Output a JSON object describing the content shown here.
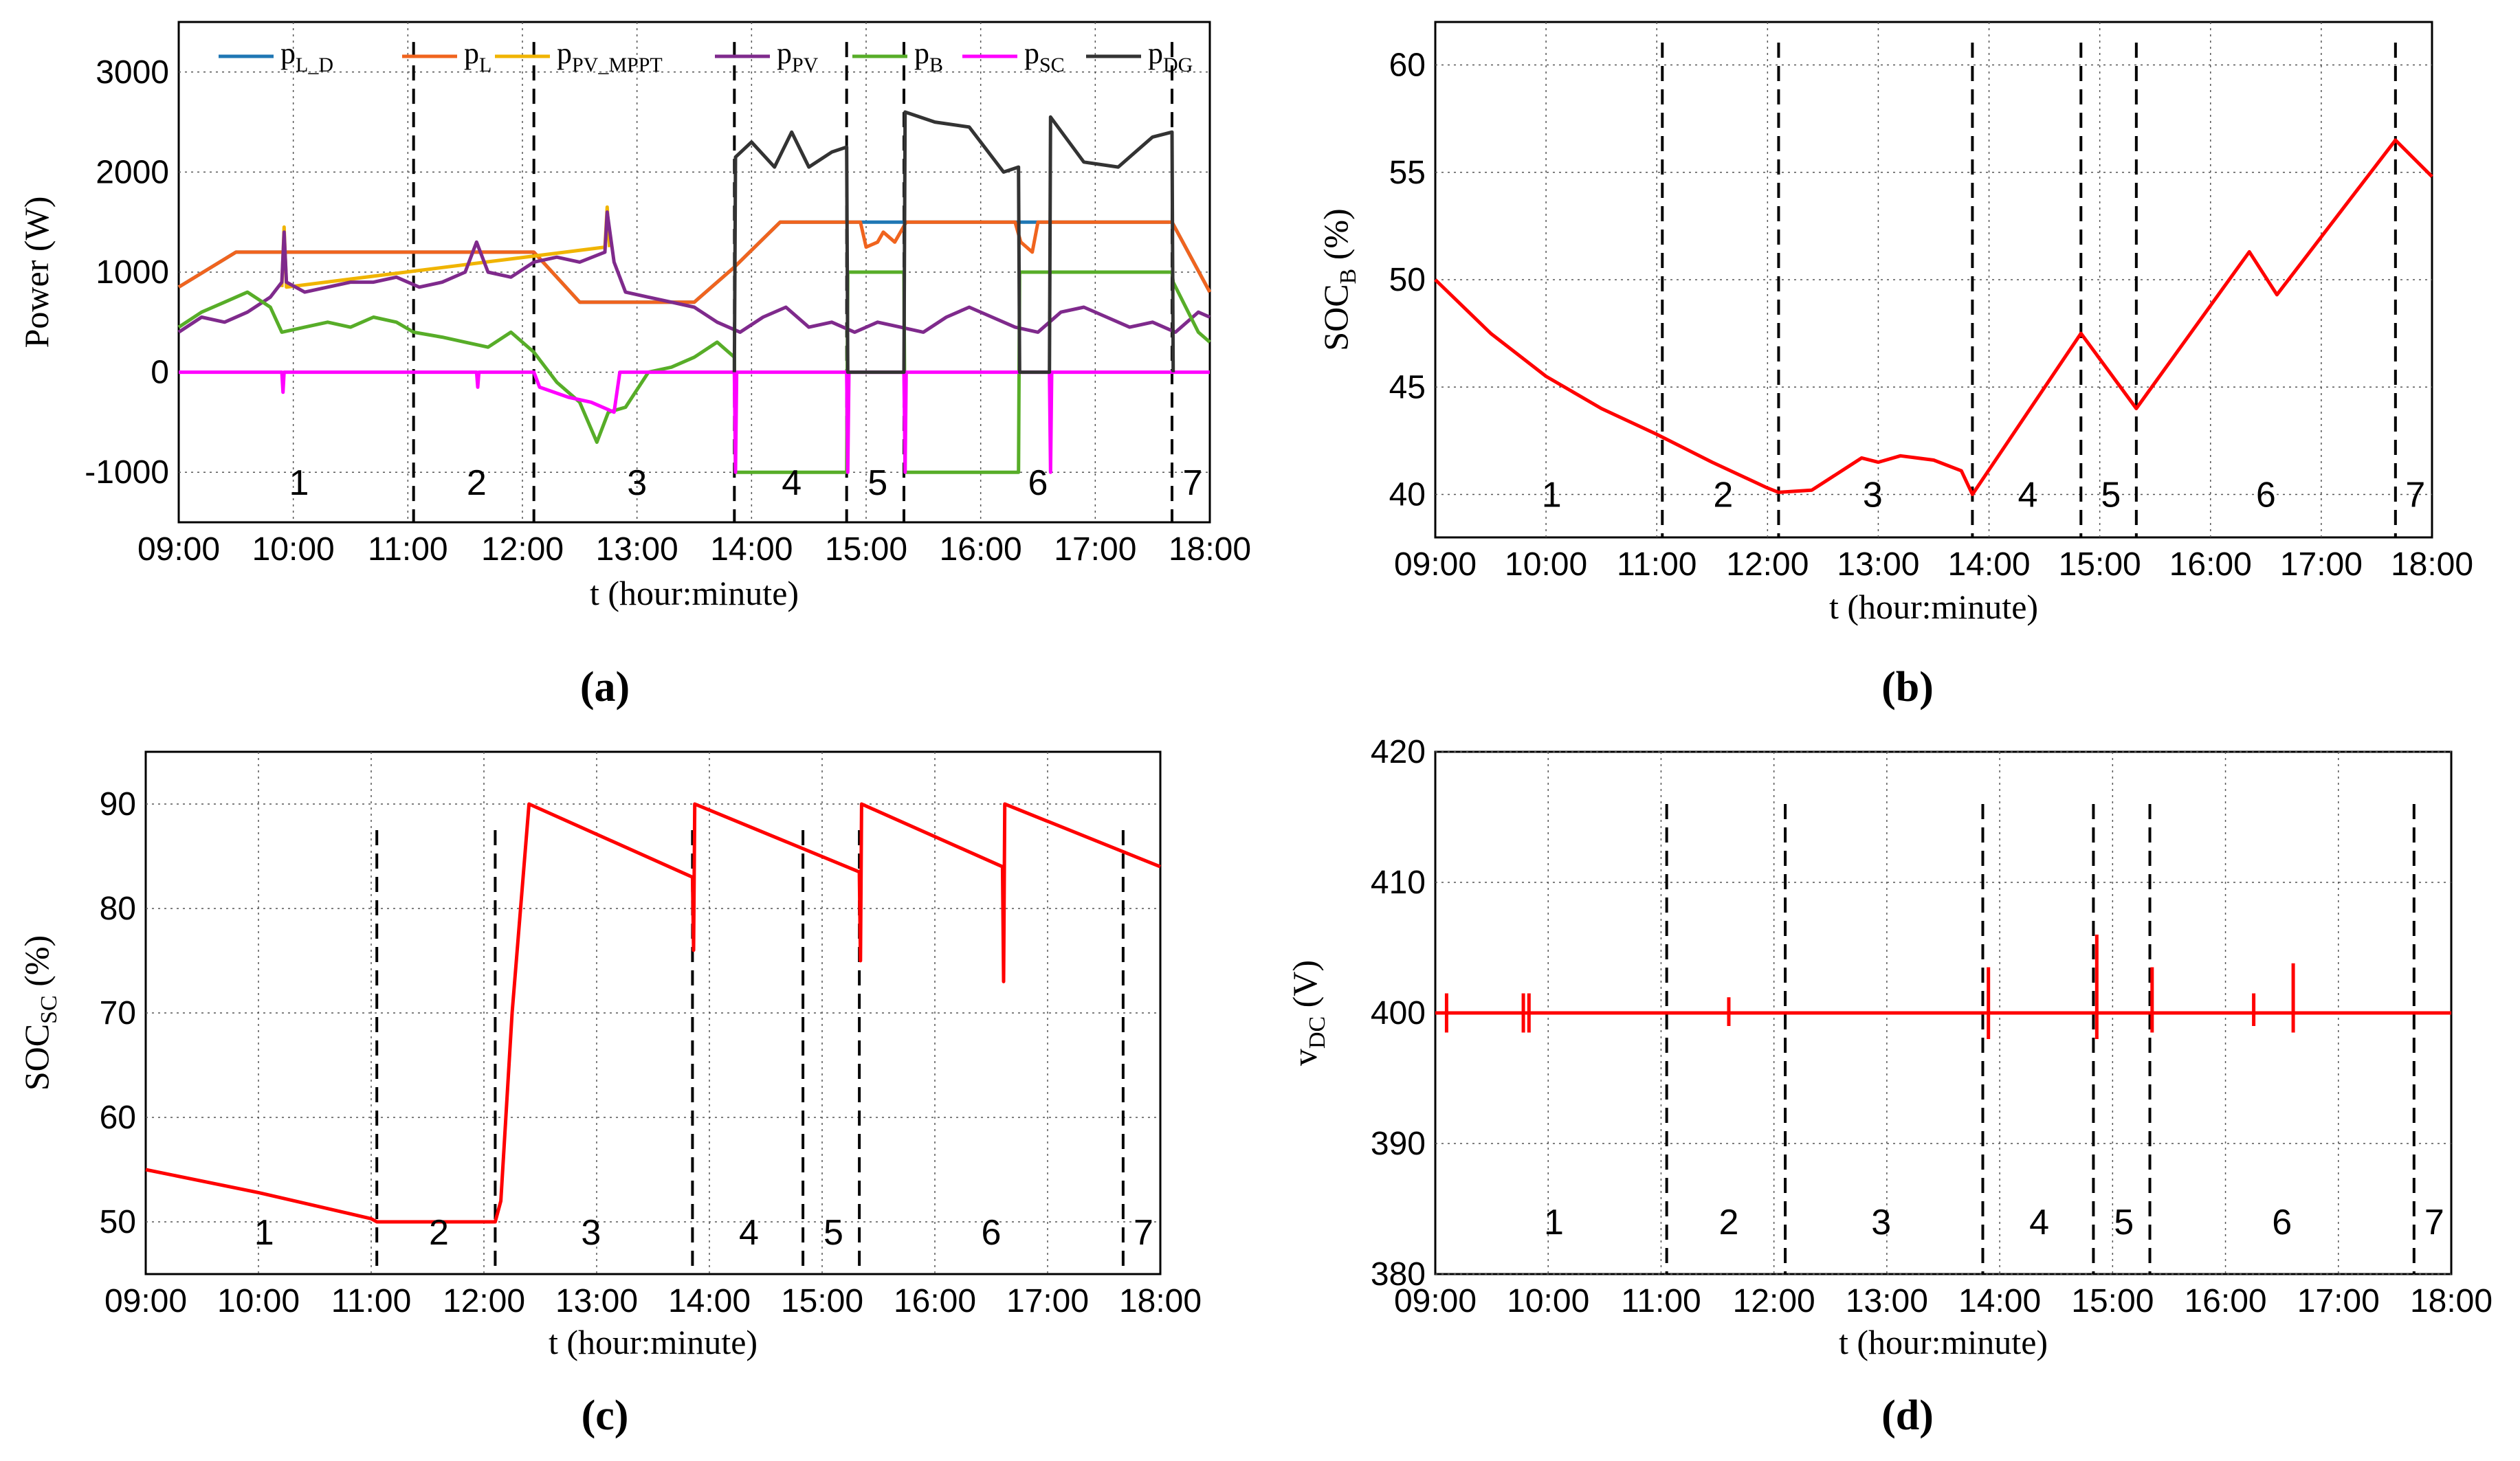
{
  "figure": {
    "panels": [
      {
        "id": "a",
        "caption": "(a)"
      },
      {
        "id": "b",
        "caption": "(b)"
      },
      {
        "id": "c",
        "caption": "(c)"
      },
      {
        "id": "d",
        "caption": "(d)"
      }
    ]
  },
  "chart_data": [
    {
      "id": "a",
      "type": "line",
      "caption": "(a)",
      "title": "",
      "xlabel": "t (hour:minute)",
      "ylabel": "Power (W)",
      "xlim": [
        9.0,
        18.0
      ],
      "ylim": [
        -1500,
        3500
      ],
      "x_tick_values": [
        9,
        10,
        11,
        12,
        13,
        14,
        15,
        16,
        17,
        18
      ],
      "x_tick_labels": [
        "09:00",
        "10:00",
        "11:00",
        "12:00",
        "13:00",
        "14:00",
        "15:00",
        "16:00",
        "17:00",
        "18:00"
      ],
      "y_tick_values": [
        -1000,
        0,
        1000,
        2000,
        3000
      ],
      "y_tick_labels": [
        "-1000",
        "0",
        "1000",
        "2000",
        "3000"
      ],
      "grid": true,
      "legend_position": "top",
      "legend": [
        {
          "base": "p",
          "sub": "L_D",
          "color": "#1f77b4"
        },
        {
          "base": "p",
          "sub": "L",
          "color": "#f0641e"
        },
        {
          "base": "p",
          "sub": "PV_MPPT",
          "color": "#f0b400"
        },
        {
          "base": "p",
          "sub": "PV",
          "color": "#7f2a8c"
        },
        {
          "base": "p",
          "sub": "B",
          "color": "#57ad28"
        },
        {
          "base": "p",
          "sub": "SC",
          "color": "#ff00ff"
        },
        {
          "base": "p",
          "sub": "DG",
          "color": "#333333"
        }
      ],
      "stage_boundaries": [
        11.05,
        12.1,
        13.85,
        14.83,
        15.33,
        17.67
      ],
      "stage_labels": [
        {
          "label": "1",
          "x": 10.05
        },
        {
          "label": "2",
          "x": 11.6
        },
        {
          "label": "3",
          "x": 13.0
        },
        {
          "label": "4",
          "x": 14.35
        },
        {
          "label": "5",
          "x": 15.1
        },
        {
          "label": "6",
          "x": 16.5
        },
        {
          "label": "7",
          "x": 17.85
        }
      ],
      "stage_label_y": -1100,
      "series": [
        {
          "name": "p_L_D",
          "color": "#1f77b4",
          "x": [
            9.0,
            9.5,
            12.1,
            12.5,
            13.5,
            13.85,
            14.25,
            17.67,
            18.0
          ],
          "y": [
            850,
            1200,
            1200,
            700,
            700,
            1050,
            1500,
            1500,
            800
          ]
        },
        {
          "name": "p_L",
          "color": "#f0641e",
          "x": [
            9.0,
            9.5,
            12.1,
            12.5,
            13.5,
            13.85,
            14.25,
            14.95,
            15.0,
            15.1,
            15.15,
            15.25,
            15.3,
            15.35,
            16.3,
            16.35,
            16.45,
            16.5,
            17.67,
            18.0
          ],
          "y": [
            850,
            1200,
            1200,
            700,
            700,
            1050,
            1500,
            1500,
            1250,
            1300,
            1400,
            1300,
            1400,
            1500,
            1500,
            1300,
            1200,
            1500,
            1500,
            800
          ]
        },
        {
          "name": "p_PV_MPPT",
          "color": "#f0b400",
          "x": [
            9.9,
            9.92,
            9.94,
            12.72,
            12.74,
            12.76
          ],
          "y": [
            850,
            1450,
            850,
            1250,
            1650,
            1250
          ]
        },
        {
          "name": "p_PV",
          "color": "#7f2a8c",
          "x": [
            9.0,
            9.2,
            9.4,
            9.6,
            9.8,
            9.9,
            9.92,
            9.94,
            10.1,
            10.3,
            10.5,
            10.7,
            10.9,
            11.1,
            11.3,
            11.5,
            11.6,
            11.7,
            11.9,
            12.1,
            12.3,
            12.5,
            12.72,
            12.74,
            12.8,
            12.9,
            13.1,
            13.3,
            13.5,
            13.7,
            13.9,
            14.1,
            14.3,
            14.5,
            14.7,
            14.9,
            15.1,
            15.3,
            15.5,
            15.7,
            15.9,
            16.1,
            16.3,
            16.5,
            16.7,
            16.9,
            17.1,
            17.3,
            17.5,
            17.7,
            17.9,
            18.0
          ],
          "y": [
            400,
            550,
            500,
            600,
            750,
            900,
            1400,
            900,
            800,
            850,
            900,
            900,
            950,
            850,
            900,
            1000,
            1300,
            1000,
            950,
            1100,
            1150,
            1100,
            1200,
            1600,
            1100,
            800,
            750,
            700,
            650,
            500,
            400,
            550,
            650,
            450,
            500,
            400,
            500,
            450,
            400,
            550,
            650,
            550,
            450,
            400,
            600,
            650,
            550,
            450,
            500,
            400,
            600,
            550
          ]
        },
        {
          "name": "p_B",
          "color": "#57ad28",
          "x": [
            9.0,
            9.2,
            9.4,
            9.6,
            9.8,
            9.9,
            10.1,
            10.3,
            10.5,
            10.7,
            10.9,
            11.05,
            11.3,
            11.5,
            11.7,
            11.9,
            12.1,
            12.3,
            12.5,
            12.65,
            12.75,
            12.9,
            13.1,
            13.3,
            13.5,
            13.7,
            13.85,
            13.86,
            14.83,
            14.84,
            15.33,
            15.34,
            16.33,
            16.34,
            17.67,
            17.68,
            17.9,
            18.0
          ],
          "y": [
            450,
            600,
            700,
            800,
            650,
            400,
            450,
            500,
            450,
            550,
            500,
            400,
            350,
            300,
            250,
            400,
            200,
            -100,
            -300,
            -700,
            -400,
            -350,
            0,
            50,
            150,
            300,
            150,
            -1000,
            -1000,
            1000,
            1000,
            -1000,
            -1000,
            1000,
            1000,
            900,
            400,
            300
          ]
        },
        {
          "name": "p_SC",
          "color": "#ff00ff",
          "x": [
            9.0,
            9.9,
            9.91,
            9.92,
            11.6,
            11.61,
            11.62,
            12.1,
            12.15,
            12.4,
            12.6,
            12.8,
            12.85,
            13.85,
            13.86,
            13.87,
            14.83,
            14.84,
            14.85,
            15.33,
            15.34,
            15.35,
            16.6,
            16.61,
            16.62,
            18.0
          ],
          "y": [
            0,
            0,
            -200,
            0,
            0,
            -150,
            0,
            0,
            -150,
            -250,
            -300,
            -400,
            0,
            0,
            -1000,
            0,
            0,
            -1000,
            0,
            0,
            -1000,
            0,
            0,
            -1000,
            0,
            0
          ]
        },
        {
          "name": "p_DG",
          "color": "#333333",
          "x": [
            13.85,
            13.86,
            14.0,
            14.2,
            14.35,
            14.5,
            14.7,
            14.83,
            14.84,
            15.33,
            15.34,
            15.6,
            15.9,
            16.2,
            16.33,
            16.34,
            16.6,
            16.61,
            16.9,
            17.2,
            17.5,
            17.67,
            17.68
          ],
          "y": [
            0,
            2150,
            2300,
            2050,
            2400,
            2050,
            2200,
            2250,
            0,
            0,
            2600,
            2500,
            2450,
            2000,
            2050,
            0,
            0,
            2550,
            2100,
            2050,
            2350,
            2400,
            0
          ]
        }
      ]
    },
    {
      "id": "b",
      "type": "line",
      "caption": "(b)",
      "title": "",
      "xlabel": "t (hour:minute)",
      "ylabel": {
        "base": "SOC",
        "sub": "B",
        "rest": " (%)"
      },
      "xlim": [
        9.0,
        18.0
      ],
      "ylim": [
        38.0,
        62.0
      ],
      "x_tick_values": [
        9,
        10,
        11,
        12,
        13,
        14,
        15,
        16,
        17,
        18
      ],
      "x_tick_labels": [
        "09:00",
        "10:00",
        "11:00",
        "12:00",
        "13:00",
        "14:00",
        "15:00",
        "16:00",
        "17:00",
        "18:00"
      ],
      "y_tick_values": [
        40,
        45,
        50,
        55,
        60
      ],
      "y_tick_labels": [
        "40",
        "45",
        "50",
        "55",
        "60"
      ],
      "grid": true,
      "stage_boundaries": [
        11.05,
        12.1,
        13.85,
        14.83,
        15.33,
        17.67
      ],
      "stage_labels": [
        {
          "label": "1",
          "x": 10.05
        },
        {
          "label": "2",
          "x": 11.6
        },
        {
          "label": "3",
          "x": 12.95
        },
        {
          "label": "4",
          "x": 14.35
        },
        {
          "label": "5",
          "x": 15.1
        },
        {
          "label": "6",
          "x": 16.5
        },
        {
          "label": "7",
          "x": 17.85
        }
      ],
      "stage_label_y": 40,
      "series": [
        {
          "name": "SOC_B",
          "color": "#ff0000",
          "x": [
            9.0,
            9.5,
            10.0,
            10.5,
            11.0,
            11.5,
            12.0,
            12.1,
            12.4,
            12.7,
            12.85,
            13.0,
            13.2,
            13.5,
            13.75,
            13.85,
            14.83,
            15.33,
            16.35,
            16.6,
            17.67,
            18.0
          ],
          "y": [
            50,
            47.5,
            45.5,
            44,
            42.8,
            41.5,
            40.3,
            40.1,
            40.2,
            41.2,
            41.7,
            41.5,
            41.8,
            41.6,
            41.1,
            40,
            47.5,
            44,
            51.3,
            49.3,
            56.5,
            54.8
          ]
        }
      ]
    },
    {
      "id": "c",
      "type": "line",
      "caption": "(c)",
      "title": "",
      "xlabel": "t (hour:minute)",
      "ylabel": {
        "base": "SOC",
        "sub": "SC",
        "rest": " (%)"
      },
      "xlim": [
        9.0,
        18.0
      ],
      "ylim": [
        45.0,
        95.0
      ],
      "x_tick_values": [
        9,
        10,
        11,
        12,
        13,
        14,
        15,
        16,
        17,
        18
      ],
      "x_tick_labels": [
        "09:00",
        "10:00",
        "11:00",
        "12:00",
        "13:00",
        "14:00",
        "15:00",
        "16:00",
        "17:00",
        "18:00"
      ],
      "y_tick_values": [
        50,
        60,
        70,
        80,
        90
      ],
      "y_tick_labels": [
        "50",
        "60",
        "70",
        "80",
        "90"
      ],
      "grid": true,
      "stage_boundaries": [
        11.05,
        12.1,
        13.85,
        14.83,
        15.33,
        17.67
      ],
      "boundary_top": 87.5,
      "stage_labels": [
        {
          "label": "1",
          "x": 10.05
        },
        {
          "label": "2",
          "x": 11.6
        },
        {
          "label": "3",
          "x": 12.95
        },
        {
          "label": "4",
          "x": 14.35
        },
        {
          "label": "5",
          "x": 15.1
        },
        {
          "label": "6",
          "x": 16.5
        },
        {
          "label": "7",
          "x": 17.85
        }
      ],
      "stage_label_y": 49,
      "series": [
        {
          "name": "SOC_SC",
          "color": "#ff0000",
          "x": [
            9.0,
            10.0,
            11.0,
            11.05,
            12.1,
            12.15,
            12.25,
            12.4,
            13.85,
            13.86,
            13.87,
            15.33,
            15.34,
            15.35,
            16.6,
            16.61,
            16.62,
            18.0
          ],
          "y": [
            55,
            52.8,
            50.3,
            50,
            50,
            52,
            70,
            90,
            83,
            76,
            90,
            83.5,
            75,
            90,
            84,
            73,
            90,
            84
          ]
        }
      ]
    },
    {
      "id": "d",
      "type": "line",
      "caption": "(d)",
      "title": "",
      "xlabel": "t (hour:minute)",
      "ylabel": {
        "base": "v",
        "sub": "DC",
        "rest": " (V)"
      },
      "xlim": [
        9.0,
        18.0
      ],
      "ylim": [
        380.0,
        420.0
      ],
      "x_tick_values": [
        9,
        10,
        11,
        12,
        13,
        14,
        15,
        16,
        17,
        18
      ],
      "x_tick_labels": [
        "09:00",
        "10:00",
        "11:00",
        "12:00",
        "13:00",
        "14:00",
        "15:00",
        "16:00",
        "17:00",
        "18:00"
      ],
      "y_tick_values": [
        380,
        390,
        400,
        410,
        420
      ],
      "y_tick_labels": [
        "380",
        "390",
        "400",
        "410",
        "420"
      ],
      "grid": true,
      "stage_boundaries": [
        11.05,
        12.1,
        13.85,
        14.83,
        15.33,
        17.67
      ],
      "boundary_top": 416,
      "stage_labels": [
        {
          "label": "1",
          "x": 10.05
        },
        {
          "label": "2",
          "x": 11.6
        },
        {
          "label": "3",
          "x": 12.95
        },
        {
          "label": "4",
          "x": 14.35
        },
        {
          "label": "5",
          "x": 15.1
        },
        {
          "label": "6",
          "x": 16.5
        },
        {
          "label": "7",
          "x": 17.85
        }
      ],
      "stage_label_y": 384,
      "series": [
        {
          "name": "v_DC",
          "color": "#ff0000",
          "nominal": 400,
          "x": [
            9.0,
            18.0
          ],
          "y": [
            400,
            400
          ]
        }
      ],
      "spikes": [
        {
          "x": 9.1,
          "y0": 398.5,
          "y1": 401.5
        },
        {
          "x": 9.78,
          "y0": 398.5,
          "y1": 401.5
        },
        {
          "x": 9.83,
          "y0": 398.5,
          "y1": 401.5
        },
        {
          "x": 11.6,
          "y0": 399,
          "y1": 401.2
        },
        {
          "x": 13.9,
          "y0": 398,
          "y1": 403.5
        },
        {
          "x": 14.86,
          "y0": 398,
          "y1": 406
        },
        {
          "x": 15.35,
          "y0": 398.5,
          "y1": 403.5
        },
        {
          "x": 16.25,
          "y0": 399,
          "y1": 401.5
        },
        {
          "x": 16.6,
          "y0": 398.5,
          "y1": 403.8
        }
      ]
    }
  ]
}
